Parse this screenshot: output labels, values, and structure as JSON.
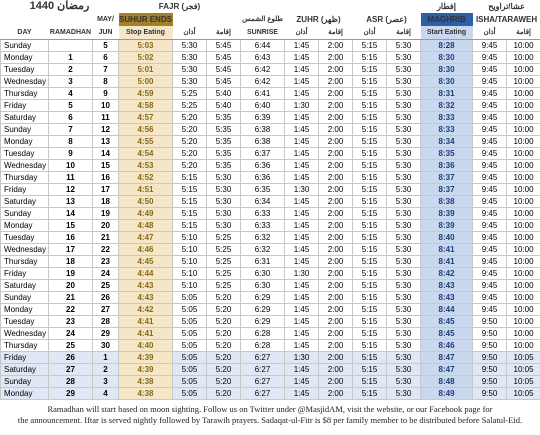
{
  "header": {
    "title": "رمضان 1440",
    "fajr": "FAJR (فجر)",
    "iftar": "إفطار",
    "isha_ar": "عشا/تراويح",
    "may": "MAY/",
    "suhur": "SUHUR ENDS",
    "sunrise_ar": "طلوع الشمس",
    "zuhr": "ZUHR (ظهر)",
    "asr": "ASR (عصر)",
    "maghrib": "MAGHRIB",
    "isha": "ISHA/TARAWEH"
  },
  "columns": [
    "DAY",
    "RAMADHAN",
    "JUN",
    "Stop Eating",
    "أذان",
    "إقامة",
    "SUNRISE",
    "أذان",
    "إقامة",
    "أذان",
    "إقامة",
    "Start Eating",
    "أذان",
    "إقامة"
  ],
  "rows": [
    [
      "Sunday",
      null,
      "5",
      "5:03",
      "5:30",
      "5:45",
      "6:44",
      "1:45",
      "2:00",
      "5:15",
      "5:30",
      "8:28",
      "9:45",
      "10:00"
    ],
    [
      "Monday",
      "1",
      "6",
      "5:02",
      "5:30",
      "5:45",
      "6:43",
      "1:45",
      "2:00",
      "5:15",
      "5:30",
      "8:30",
      "9:45",
      "10:00"
    ],
    [
      "Tuesday",
      "2",
      "7",
      "5:01",
      "5:30",
      "5:45",
      "6:42",
      "1:45",
      "2:00",
      "5:15",
      "5:30",
      "8:30",
      "9:45",
      "10:00"
    ],
    [
      "Wednesday",
      "3",
      "8",
      "5:00",
      "5:30",
      "5:45",
      "6:42",
      "1:45",
      "2:00",
      "5:15",
      "5:30",
      "8:30",
      "9:45",
      "10:00"
    ],
    [
      "Thursday",
      "4",
      "9",
      "4:59",
      "5:25",
      "5:40",
      "6:41",
      "1:45",
      "2:00",
      "5:15",
      "5:30",
      "8:31",
      "9:45",
      "10:00"
    ],
    [
      "Friday",
      "5",
      "10",
      "4:58",
      "5:25",
      "5:40",
      "6:40",
      "1:30",
      "2:00",
      "5:15",
      "5:30",
      "8:32",
      "9:45",
      "10:00"
    ],
    [
      "Saturday",
      "6",
      "11",
      "4:57",
      "5:20",
      "5:35",
      "6:39",
      "1:45",
      "2:00",
      "5:15",
      "5:30",
      "8:33",
      "9:45",
      "10:00"
    ],
    [
      "Sunday",
      "7",
      "12",
      "4:56",
      "5:20",
      "5:35",
      "6:38",
      "1:45",
      "2:00",
      "5:15",
      "5:30",
      "8:33",
      "9:45",
      "10:00"
    ],
    [
      "Monday",
      "8",
      "13",
      "4:55",
      "5:20",
      "5:35",
      "6:38",
      "1:45",
      "2:00",
      "5:15",
      "5:30",
      "8:34",
      "9:45",
      "10:00"
    ],
    [
      "Tuesday",
      "9",
      "14",
      "4:54",
      "5:20",
      "5:35",
      "6:37",
      "1:45",
      "2:00",
      "5:15",
      "5:30",
      "8:35",
      "9:45",
      "10:00"
    ],
    [
      "Wednesday",
      "10",
      "15",
      "4:53",
      "5:20",
      "5:35",
      "6:36",
      "1:45",
      "2:00",
      "5:15",
      "5:30",
      "8:36",
      "9:45",
      "10:00"
    ],
    [
      "Thursday",
      "11",
      "16",
      "4:52",
      "5:15",
      "5:30",
      "6:36",
      "1:45",
      "2:00",
      "5:15",
      "5:30",
      "8:37",
      "9:45",
      "10:00"
    ],
    [
      "Friday",
      "12",
      "17",
      "4:51",
      "5:15",
      "5:30",
      "6:35",
      "1:30",
      "2:00",
      "5:15",
      "5:30",
      "8:37",
      "9:45",
      "10:00"
    ],
    [
      "Saturday",
      "13",
      "18",
      "4:50",
      "5:15",
      "5:30",
      "6:34",
      "1:45",
      "2:00",
      "5:15",
      "5:30",
      "8:38",
      "9:45",
      "10:00"
    ],
    [
      "Sunday",
      "14",
      "19",
      "4:49",
      "5:15",
      "5:30",
      "6:33",
      "1:45",
      "2:00",
      "5:15",
      "5:30",
      "8:39",
      "9:45",
      "10:00"
    ],
    [
      "Monday",
      "15",
      "20",
      "4:48",
      "5:15",
      "5:30",
      "6:33",
      "1:45",
      "2:00",
      "5:15",
      "5:30",
      "8:39",
      "9:45",
      "10:00"
    ],
    [
      "Tuesday",
      "16",
      "21",
      "4:47",
      "5:10",
      "5:25",
      "6:32",
      "1:45",
      "2:00",
      "5:15",
      "5:30",
      "8:40",
      "9:45",
      "10:00"
    ],
    [
      "Wednesday",
      "17",
      "22",
      "4:46",
      "5:10",
      "5:25",
      "6:32",
      "1:45",
      "2:00",
      "5:15",
      "5:30",
      "8:41",
      "9:45",
      "10:00"
    ],
    [
      "Thursday",
      "18",
      "23",
      "4:45",
      "5:10",
      "5:25",
      "6:31",
      "1:45",
      "2:00",
      "5:15",
      "5:30",
      "8:41",
      "9:45",
      "10:00"
    ],
    [
      "Friday",
      "19",
      "24",
      "4:44",
      "5:10",
      "5:25",
      "6:30",
      "1:30",
      "2:00",
      "5:15",
      "5:30",
      "8:42",
      "9:45",
      "10:00"
    ],
    [
      "Saturday",
      "20",
      "25",
      "4:43",
      "5:10",
      "5:25",
      "6:30",
      "1:45",
      "2:00",
      "5:15",
      "5:30",
      "8:43",
      "9:45",
      "10:00"
    ],
    [
      "Sunday",
      "21",
      "26",
      "4:43",
      "5:05",
      "5:20",
      "6:29",
      "1:45",
      "2:00",
      "5:15",
      "5:30",
      "8:43",
      "9:45",
      "10:00"
    ],
    [
      "Monday",
      "22",
      "27",
      "4:42",
      "5:05",
      "5:20",
      "6:29",
      "1:45",
      "2:00",
      "5:15",
      "5:30",
      "8:44",
      "9:45",
      "10:00"
    ],
    [
      "Tuesday",
      "23",
      "28",
      "4:41",
      "5:05",
      "5:20",
      "6:29",
      "1:45",
      "2:00",
      "5:15",
      "5:30",
      "8:45",
      "9:50",
      "10:00"
    ],
    [
      "Wednesday",
      "24",
      "29",
      "4:41",
      "5:05",
      "5:20",
      "6:28",
      "1:45",
      "2:00",
      "5:15",
      "5:30",
      "8:45",
      "9:50",
      "10:00"
    ],
    [
      "Thursday",
      "25",
      "30",
      "4:40",
      "5:05",
      "5:20",
      "6:28",
      "1:45",
      "2:00",
      "5:15",
      "5:30",
      "8:46",
      "9:50",
      "10:00"
    ],
    [
      "Friday",
      "26",
      "1",
      "4:39",
      "5:05",
      "5:20",
      "6:27",
      "1:30",
      "2:00",
      "5:15",
      "5:30",
      "8:47",
      "9:50",
      "10:05"
    ],
    [
      "Saturday",
      "27",
      "2",
      "4:39",
      "5:05",
      "5:20",
      "6:27",
      "1:45",
      "2:00",
      "5:15",
      "5:30",
      "8:47",
      "9:50",
      "10:05"
    ],
    [
      "Sunday",
      "28",
      "3",
      "4:38",
      "5:05",
      "5:20",
      "6:27",
      "1:45",
      "2:00",
      "5:15",
      "5:30",
      "8:48",
      "9:50",
      "10:05"
    ],
    [
      "Monday",
      "29",
      "4",
      "4:38",
      "5:05",
      "5:20",
      "6:27",
      "1:45",
      "2:00",
      "5:15",
      "5:30",
      "8:49",
      "9:50",
      "10:05"
    ]
  ],
  "footer": [
    "Ramadhan will start based on moon sighting.  Follow us on Twitter under @MasjidAM, visit the website, or our Facebook page for",
    "the announcement.  Iftar is served nightly followed by Tarawih prayers.  Sadaqat-ul-Fitr is $8 per family member to be distributed before Salatul-Eid."
  ]
}
